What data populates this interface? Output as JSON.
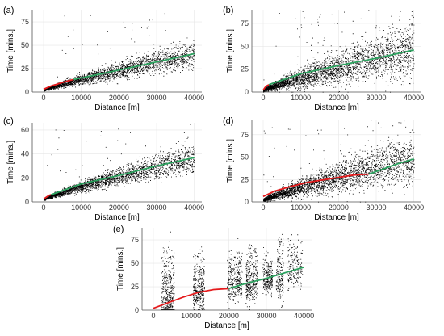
{
  "chart_data": [
    {
      "type": "scatter",
      "panel_label": "(a)",
      "xlabel": "Distance [m]",
      "ylabel": "Time [mins.]",
      "xlim": [
        -3000,
        42000
      ],
      "ylim": [
        0,
        88
      ],
      "xticks": [
        0,
        10000,
        20000,
        30000,
        40000
      ],
      "yticks": [
        0,
        25,
        50,
        75
      ],
      "grid": true,
      "cloud": {
        "max_x": 40000,
        "mean_t_at_max": 40,
        "spread": 0.32,
        "count": 2400,
        "outliers": 45
      },
      "series": [
        {
          "color": "#e41a1c",
          "x": [
            0,
            2000,
            4000,
            6000,
            8000
          ],
          "y": [
            3,
            6.5,
            9,
            11.5,
            13.5
          ]
        },
        {
          "color": "#2ca25f",
          "x": [
            8000,
            16000,
            24000,
            32000,
            40000
          ],
          "y": [
            13.5,
            20,
            27,
            34,
            41
          ]
        }
      ]
    },
    {
      "type": "scatter",
      "panel_label": "(b)",
      "xlabel": "Distance [m]",
      "ylabel": "Time [mins.]",
      "xlim": [
        -3000,
        42000
      ],
      "ylim": [
        0,
        90
      ],
      "xticks": [
        0,
        10000,
        20000,
        30000,
        40000
      ],
      "yticks": [
        0,
        25,
        50,
        75
      ],
      "grid": true,
      "cloud": {
        "max_x": 40000,
        "mean_t_at_max": 46,
        "spread": 0.55,
        "count": 3000,
        "outliers": 70
      },
      "series": [
        {
          "color": "#e41a1c",
          "x": [
            0,
            500,
            1000,
            1500
          ],
          "y": [
            2,
            5,
            7,
            8
          ]
        },
        {
          "color": "#2ca25f",
          "x": [
            1500,
            10000,
            20000,
            30000,
            40000
          ],
          "y": [
            8,
            20,
            29,
            37,
            46
          ]
        }
      ]
    },
    {
      "type": "scatter",
      "panel_label": "(c)",
      "xlabel": "Distance [m]",
      "ylabel": "Time [mins.]",
      "xlim": [
        -3000,
        42000
      ],
      "ylim": [
        0,
        66
      ],
      "xticks": [
        0,
        10000,
        20000,
        30000,
        40000
      ],
      "yticks": [
        0,
        20,
        40,
        60
      ],
      "grid": true,
      "cloud": {
        "max_x": 40000,
        "mean_t_at_max": 37,
        "spread": 0.28,
        "count": 2600,
        "outliers": 40
      },
      "series": [
        {
          "color": "#e41a1c",
          "x": [
            0,
            500,
            1000,
            1500,
            2000
          ],
          "y": [
            2,
            3.5,
            4.5,
            5.5,
            6
          ]
        },
        {
          "color": "#2ca25f",
          "x": [
            2000,
            10000,
            20000,
            30000,
            40000
          ],
          "y": [
            6,
            15,
            22,
            30,
            37
          ]
        }
      ]
    },
    {
      "type": "scatter",
      "panel_label": "(d)",
      "xlabel": "Distance [m]",
      "ylabel": "Time [mins.]",
      "xlim": [
        -3000,
        42000
      ],
      "ylim": [
        0,
        92
      ],
      "xticks": [
        0,
        10000,
        20000,
        30000,
        40000
      ],
      "yticks": [
        0,
        25,
        50,
        75
      ],
      "grid": true,
      "cloud": {
        "max_x": 40000,
        "mean_t_at_max": 48,
        "spread": 0.5,
        "count": 3000,
        "outliers": 60
      },
      "series": [
        {
          "color": "#e41a1c",
          "x": [
            0,
            3000,
            7000,
            12000,
            18000,
            24000,
            28000
          ],
          "y": [
            6,
            12,
            17,
            22,
            26,
            30,
            31
          ]
        },
        {
          "color": "#2ca25f",
          "x": [
            28000,
            32000,
            36000,
            40000
          ],
          "y": [
            31,
            37,
            43,
            48
          ]
        }
      ]
    },
    {
      "type": "scatter",
      "panel_label": "(e)",
      "xlabel": "Distance [m]",
      "ylabel": "Time [mins.]",
      "xlim": [
        -3000,
        42000
      ],
      "ylim": [
        0,
        88
      ],
      "xticks": [
        0,
        10000,
        20000,
        30000,
        40000
      ],
      "yticks": [
        0,
        25,
        50,
        75
      ],
      "grid": true,
      "clusters": [
        {
          "x0": 2000,
          "x1": 5500,
          "mean_t": 15,
          "top": 68,
          "count": 450
        },
        {
          "x0": 10500,
          "x1": 13500,
          "mean_t": 22,
          "top": 60,
          "count": 330
        },
        {
          "x0": 19500,
          "x1": 23500,
          "mean_t": 30,
          "top": 65,
          "count": 330
        },
        {
          "x0": 24500,
          "x1": 27500,
          "mean_t": 30,
          "top": 70,
          "count": 320
        },
        {
          "x0": 29000,
          "x1": 31500,
          "mean_t": 33,
          "top": 62,
          "count": 220
        },
        {
          "x0": 32500,
          "x1": 34500,
          "mean_t": 35,
          "top": 80,
          "count": 200
        },
        {
          "x0": 35500,
          "x1": 39500,
          "mean_t": 42,
          "top": 75,
          "count": 200
        }
      ],
      "series": [
        {
          "color": "#e41a1c",
          "x": [
            0,
            4000,
            8000,
            12000,
            16000,
            20000
          ],
          "y": [
            2,
            8,
            14,
            19,
            22,
            23
          ]
        },
        {
          "color": "#2ca25f",
          "x": [
            20000,
            25000,
            30000,
            35000,
            40000
          ],
          "y": [
            23,
            29,
            34,
            40,
            46
          ]
        }
      ]
    }
  ]
}
